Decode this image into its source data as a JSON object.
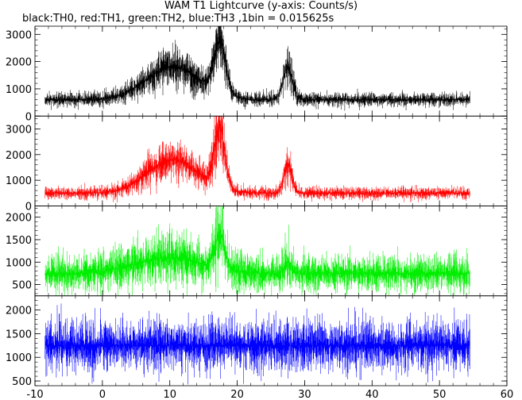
{
  "chart_data": {
    "type": "line",
    "title": "WAM T1 Lightcurve (y-axis: Counts/s)",
    "subtitle": "black:TH0, red:TH1, green:TH2, blue:TH3 ,1bin = 0.015625s",
    "xlim": [
      -10,
      60
    ],
    "x_ticks": [
      -10,
      0,
      10,
      20,
      30,
      40,
      50,
      60
    ],
    "data_x_range": [
      -8.5,
      54.5
    ],
    "grid": false,
    "panels": [
      {
        "name": "TH0",
        "color": "#000000",
        "ylim": [
          0,
          3300
        ],
        "y_ticks": [
          0,
          1000,
          2000,
          3000
        ],
        "baseline": 600,
        "noise": 0.22,
        "bumps": [
          {
            "center": 10.5,
            "height": 1200,
            "width": 4.0
          },
          {
            "center": 17.4,
            "height": 1850,
            "width": 0.9
          },
          {
            "center": 27.5,
            "height": 1200,
            "width": 0.7
          }
        ]
      },
      {
        "name": "TH1",
        "color": "#ff0000",
        "ylim": [
          0,
          3500
        ],
        "y_ticks": [
          0,
          1000,
          2000,
          3000
        ],
        "baseline": 500,
        "noise": 0.24,
        "bumps": [
          {
            "center": 10.5,
            "height": 1300,
            "width": 3.8
          },
          {
            "center": 17.4,
            "height": 2300,
            "width": 0.8
          },
          {
            "center": 27.5,
            "height": 1150,
            "width": 0.6
          }
        ]
      },
      {
        "name": "TH2",
        "color": "#00ee00",
        "ylim": [
          250,
          2250
        ],
        "y_ticks": [
          500,
          1000,
          1500,
          2000
        ],
        "baseline": 750,
        "noise": 0.28,
        "bumps": [
          {
            "center": 10.0,
            "height": 350,
            "width": 5.0
          },
          {
            "center": 17.4,
            "height": 800,
            "width": 0.7
          },
          {
            "center": 27.5,
            "height": 250,
            "width": 0.5
          }
        ]
      },
      {
        "name": "TH3",
        "color": "#0000ff",
        "ylim": [
          400,
          2300
        ],
        "y_ticks": [
          500,
          1000,
          1500,
          2000
        ],
        "baseline": 1250,
        "noise": 0.22,
        "bumps": []
      }
    ]
  }
}
